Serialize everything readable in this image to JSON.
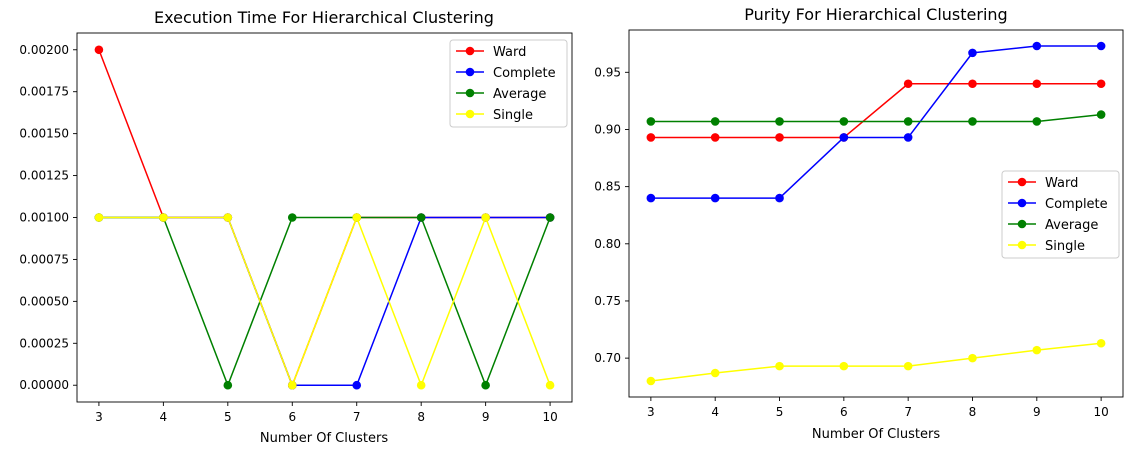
{
  "chart_data": [
    {
      "type": "line",
      "title": "Execution Time For Hierarchical Clustering",
      "xlabel": "Number Of Clusters",
      "ylabel": "",
      "x": [
        3,
        4,
        5,
        6,
        7,
        8,
        9,
        10
      ],
      "xlim": [
        2.66,
        10.34
      ],
      "ylim": [
        -0.0001,
        0.0021
      ],
      "yticks": [
        0.0,
        0.00025,
        0.0005,
        0.00075,
        0.001,
        0.00125,
        0.0015,
        0.00175,
        0.002
      ],
      "ytick_labels": [
        "0.00000",
        "0.00025",
        "0.00050",
        "0.00075",
        "0.00100",
        "0.00125",
        "0.00150",
        "0.00175",
        "0.00200"
      ],
      "grid": false,
      "legend_position": "top-right",
      "series": [
        {
          "name": "Ward",
          "color": "#ff0000",
          "values": [
            0.002,
            0.001,
            0.001,
            0.0,
            0.001,
            0.001,
            0.001,
            0.001
          ]
        },
        {
          "name": "Complete",
          "color": "#0000ff",
          "values": [
            0.001,
            0.001,
            0.001,
            0.0,
            0.0,
            0.001,
            0.001,
            0.001
          ]
        },
        {
          "name": "Average",
          "color": "#008000",
          "values": [
            0.001,
            0.001,
            0.0,
            0.001,
            0.001,
            0.001,
            0.0,
            0.001
          ]
        },
        {
          "name": "Single",
          "color": "#ffff00",
          "values": [
            0.001,
            0.001,
            0.001,
            0.0,
            0.001,
            0.0,
            0.001,
            0.0
          ]
        }
      ]
    },
    {
      "type": "line",
      "title": "Purity For Hierarchical Clustering",
      "xlabel": "Number Of Clusters",
      "ylabel": "",
      "x": [
        3,
        4,
        5,
        6,
        7,
        8,
        9,
        10
      ],
      "xlim": [
        2.66,
        10.34
      ],
      "ylim": [
        0.666,
        0.987
      ],
      "yticks": [
        0.7,
        0.75,
        0.8,
        0.85,
        0.9,
        0.95
      ],
      "ytick_labels": [
        "0.70",
        "0.75",
        "0.80",
        "0.85",
        "0.90",
        "0.95"
      ],
      "grid": false,
      "legend_position": "center-right",
      "series": [
        {
          "name": "Ward",
          "color": "#ff0000",
          "values": [
            0.893,
            0.893,
            0.893,
            0.893,
            0.94,
            0.94,
            0.94,
            0.94
          ]
        },
        {
          "name": "Complete",
          "color": "#0000ff",
          "values": [
            0.84,
            0.84,
            0.84,
            0.893,
            0.893,
            0.967,
            0.973,
            0.973
          ]
        },
        {
          "name": "Average",
          "color": "#008000",
          "values": [
            0.907,
            0.907,
            0.907,
            0.907,
            0.907,
            0.907,
            0.907,
            0.913
          ]
        },
        {
          "name": "Single",
          "color": "#ffff00",
          "values": [
            0.68,
            0.687,
            0.693,
            0.693,
            0.693,
            0.7,
            0.707,
            0.713
          ]
        }
      ]
    }
  ]
}
